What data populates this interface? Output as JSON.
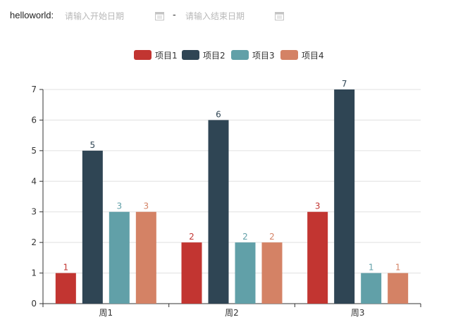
{
  "toolbar": {
    "label": "helloworld:",
    "start_placeholder": "请输入开始日期",
    "separator": "-",
    "end_placeholder": "请输入结束日期"
  },
  "colors": {
    "series": [
      "#c23531",
      "#2f4554",
      "#61a0a8",
      "#d48265"
    ],
    "axis": "#333333",
    "grid": "#e0e0e0"
  },
  "chart_data": {
    "type": "bar",
    "categories": [
      "周1",
      "周2",
      "周3"
    ],
    "series": [
      {
        "name": "项目1",
        "values": [
          1,
          2,
          3
        ]
      },
      {
        "name": "项目2",
        "values": [
          5,
          6,
          7
        ]
      },
      {
        "name": "项目3",
        "values": [
          3,
          2,
          1
        ]
      },
      {
        "name": "项目4",
        "values": [
          3,
          2,
          1
        ]
      }
    ],
    "yticks": [
      0,
      1,
      2,
      3,
      4,
      5,
      6,
      7
    ],
    "ylim": [
      0,
      7
    ],
    "grid": true,
    "legend": "top-center",
    "data_labels": true
  }
}
